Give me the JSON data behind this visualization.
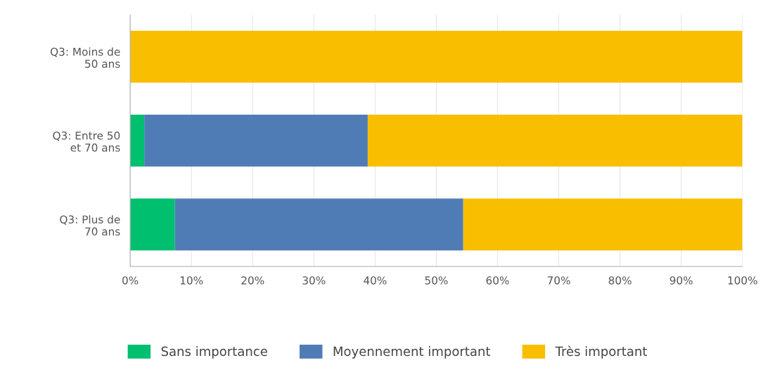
{
  "chart_data": {
    "type": "bar",
    "orientation": "horizontal",
    "stacked": true,
    "categories": [
      "Q3: Moins de 50 ans",
      "Q3: Entre 50 et 70 ans",
      "Q3: Plus de 70 ans"
    ],
    "series": [
      {
        "name": "Sans importance",
        "color": "#00bf6f",
        "values": [
          0,
          2.3,
          7.3
        ]
      },
      {
        "name": "Moyennement important",
        "color": "#507cb6",
        "values": [
          0,
          36.5,
          47.1
        ]
      },
      {
        "name": "Très important",
        "color": "#f9be00",
        "values": [
          100,
          61.2,
          45.6
        ]
      }
    ],
    "xlim": [
      0,
      100
    ],
    "xticks": [
      {
        "value": 0,
        "label": "0%"
      },
      {
        "value": 10,
        "label": "10%"
      },
      {
        "value": 20,
        "label": "20%"
      },
      {
        "value": 30,
        "label": "30%"
      },
      {
        "value": 40,
        "label": "40%"
      },
      {
        "value": 50,
        "label": "50%"
      },
      {
        "value": 60,
        "label": "60%"
      },
      {
        "value": 70,
        "label": "70%"
      },
      {
        "value": 80,
        "label": "80%"
      },
      {
        "value": 90,
        "label": "90%"
      },
      {
        "value": 100,
        "label": "100%"
      }
    ],
    "grid": "x",
    "legend": "bottom"
  }
}
